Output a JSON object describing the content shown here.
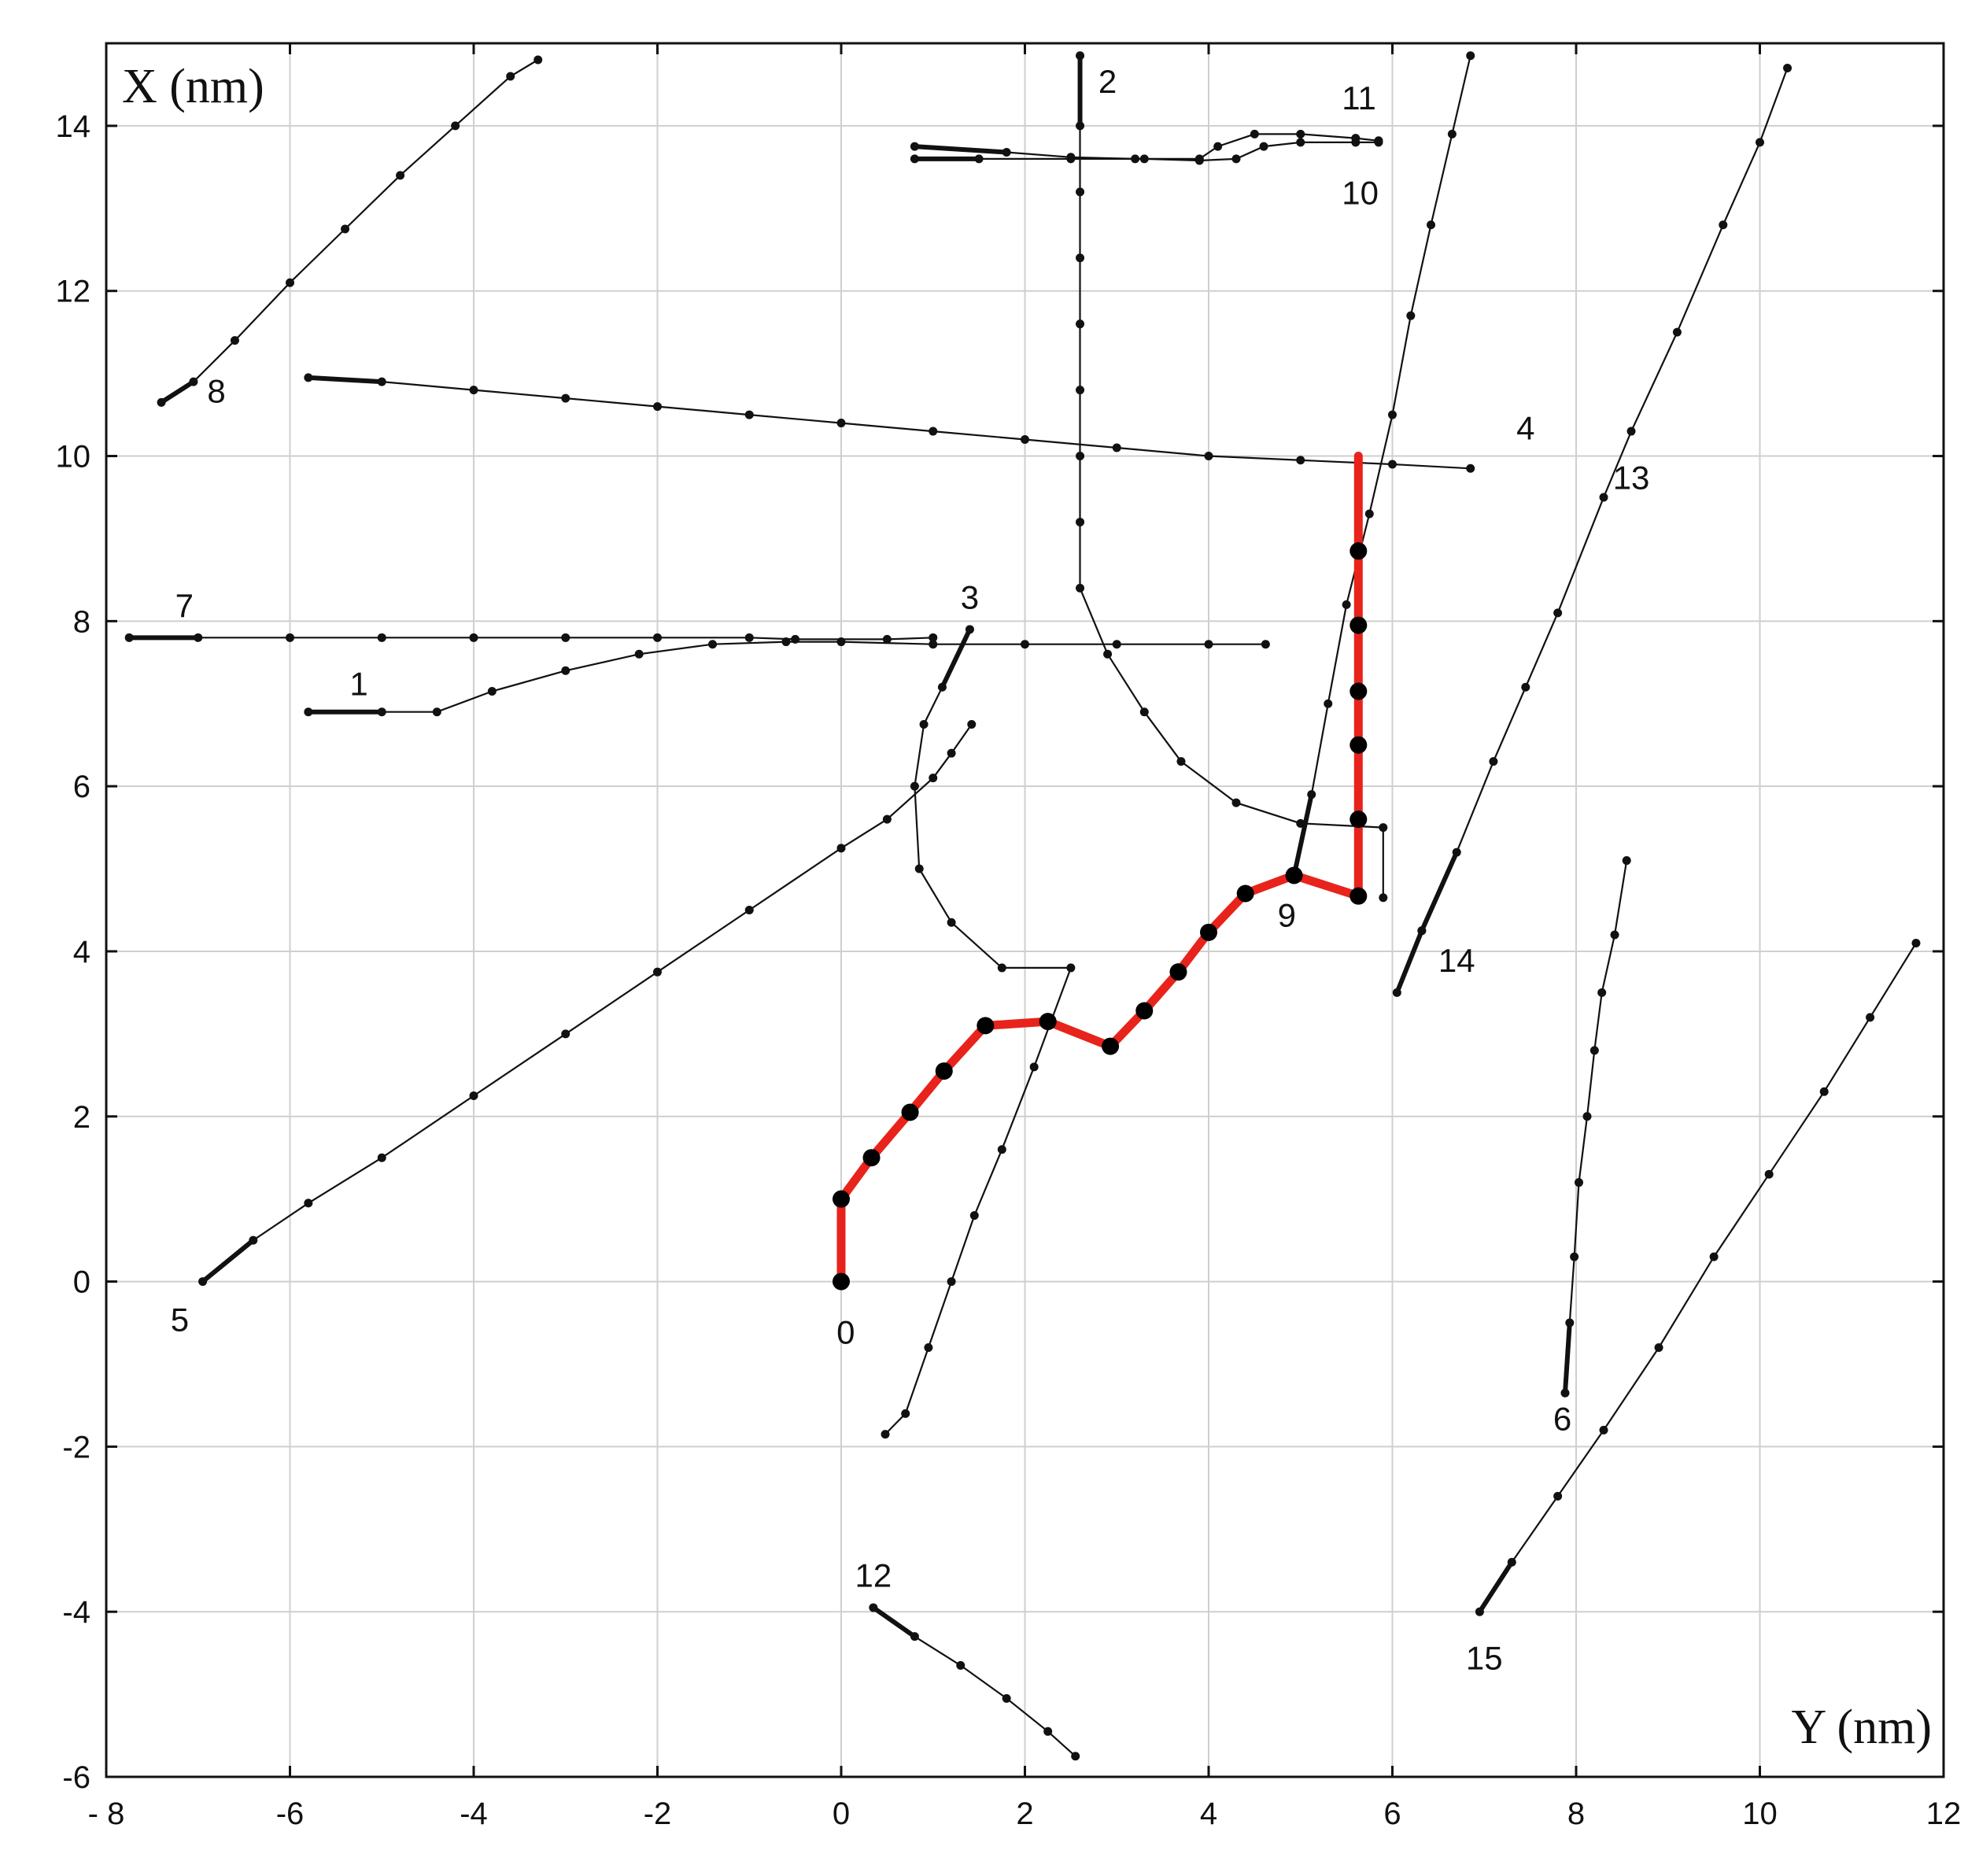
{
  "chart_data": {
    "type": "line",
    "xlabel": "Y (nm)",
    "ylabel": "X (nm)",
    "xlim": [
      -8,
      12
    ],
    "ylim": [
      -6,
      15
    ],
    "x_ticks": [
      -8,
      -6,
      -4,
      -2,
      0,
      2,
      4,
      6,
      8,
      10,
      12
    ],
    "y_ticks": [
      -6,
      -4,
      -2,
      0,
      2,
      4,
      6,
      8,
      10,
      12,
      14
    ],
    "x_tick_labels": [
      "- 8",
      "-6",
      "-4",
      "-2",
      "0",
      "2",
      "4",
      "6",
      "8",
      "10",
      "12"
    ],
    "y_tick_labels": [
      "-6",
      "-4",
      "-2",
      "0",
      "2",
      "4",
      "6",
      "8",
      "10",
      "12",
      "14"
    ],
    "grid": true,
    "highlight": {
      "label": "0",
      "color": "#e8231b",
      "points": [
        [
          0,
          0
        ],
        [
          0,
          1
        ],
        [
          0.33,
          1.5
        ],
        [
          0.75,
          2.05
        ],
        [
          1.12,
          2.55
        ],
        [
          1.57,
          3.1
        ],
        [
          2.25,
          3.15
        ],
        [
          2.93,
          2.85
        ],
        [
          3.3,
          3.28
        ],
        [
          3.67,
          3.75
        ],
        [
          4.0,
          4.23
        ],
        [
          4.4,
          4.7
        ],
        [
          4.93,
          4.92
        ],
        [
          5.63,
          4.67
        ],
        [
          5.63,
          5.6
        ],
        [
          5.63,
          6.5
        ],
        [
          5.63,
          7.15
        ],
        [
          5.63,
          7.95
        ],
        [
          5.63,
          8.85
        ],
        [
          5.63,
          10.0
        ]
      ]
    },
    "series": [
      {
        "label": "1",
        "points": [
          [
            -5.8,
            6.9
          ],
          [
            -5.0,
            6.9
          ],
          [
            -4.4,
            6.9
          ],
          [
            -3.8,
            7.15
          ],
          [
            -3.0,
            7.4
          ],
          [
            -2.2,
            7.6
          ],
          [
            -1.4,
            7.72
          ],
          [
            -0.6,
            7.75
          ],
          [
            0.0,
            7.75
          ],
          [
            1.0,
            7.72
          ],
          [
            2.0,
            7.72
          ],
          [
            3.0,
            7.72
          ],
          [
            4.0,
            7.72
          ],
          [
            4.62,
            7.72
          ]
        ]
      },
      {
        "label": "2",
        "points": [
          [
            2.6,
            14.85
          ],
          [
            2.6,
            14.0
          ],
          [
            2.6,
            13.2
          ],
          [
            2.6,
            12.4
          ],
          [
            2.6,
            11.6
          ],
          [
            2.6,
            10.8
          ],
          [
            2.6,
            10.0
          ],
          [
            2.6,
            9.2
          ],
          [
            2.6,
            8.4
          ],
          [
            2.9,
            7.6
          ],
          [
            3.3,
            6.9
          ],
          [
            3.7,
            6.3
          ],
          [
            4.3,
            5.8
          ],
          [
            5.0,
            5.55
          ],
          [
            5.9,
            5.5
          ],
          [
            5.9,
            4.65
          ]
        ]
      },
      {
        "label": "3",
        "points": [
          [
            1.4,
            7.9
          ],
          [
            1.1,
            7.2
          ],
          [
            0.9,
            6.75
          ],
          [
            0.8,
            6.0
          ],
          [
            0.85,
            5.0
          ],
          [
            1.2,
            4.35
          ],
          [
            1.75,
            3.8
          ],
          [
            2.5,
            3.8
          ],
          [
            2.1,
            2.6
          ],
          [
            1.75,
            1.6
          ],
          [
            1.45,
            0.8
          ],
          [
            1.2,
            0.0
          ],
          [
            0.95,
            -0.8
          ],
          [
            0.7,
            -1.6
          ],
          [
            0.48,
            -1.85
          ]
        ]
      },
      {
        "label": "4",
        "points": [
          [
            -5.8,
            10.95
          ],
          [
            -5.0,
            10.9
          ],
          [
            -4.0,
            10.8
          ],
          [
            -3.0,
            10.7
          ],
          [
            -2.0,
            10.6
          ],
          [
            -1.0,
            10.5
          ],
          [
            0.0,
            10.4
          ],
          [
            1.0,
            10.3
          ],
          [
            2.0,
            10.2
          ],
          [
            3.0,
            10.1
          ],
          [
            4.0,
            10.0
          ],
          [
            5.0,
            9.95
          ],
          [
            6.0,
            9.9
          ],
          [
            6.85,
            9.85
          ]
        ]
      },
      {
        "label": "5",
        "points": [
          [
            -6.95,
            0.0
          ],
          [
            -6.4,
            0.5
          ],
          [
            -5.8,
            0.95
          ],
          [
            -5.0,
            1.5
          ],
          [
            -4.0,
            2.25
          ],
          [
            -3.0,
            3.0
          ],
          [
            -2.0,
            3.75
          ],
          [
            -1.0,
            4.5
          ],
          [
            0.0,
            5.25
          ],
          [
            0.5,
            5.6
          ],
          [
            1.0,
            6.1
          ],
          [
            1.2,
            6.4
          ],
          [
            1.42,
            6.75
          ]
        ]
      },
      {
        "label": "6",
        "points": [
          [
            7.88,
            -1.35
          ],
          [
            7.93,
            -0.5
          ],
          [
            7.98,
            0.3
          ],
          [
            8.03,
            1.2
          ],
          [
            8.12,
            2.0
          ],
          [
            8.2,
            2.8
          ],
          [
            8.28,
            3.5
          ],
          [
            8.42,
            4.2
          ],
          [
            8.55,
            5.1
          ]
        ]
      },
      {
        "label": "7",
        "points": [
          [
            -7.75,
            7.8
          ],
          [
            -7.0,
            7.8
          ],
          [
            -6.0,
            7.8
          ],
          [
            -5.0,
            7.8
          ],
          [
            -4.0,
            7.8
          ],
          [
            -3.0,
            7.8
          ],
          [
            -2.0,
            7.8
          ],
          [
            -1.0,
            7.8
          ],
          [
            -0.5,
            7.78
          ],
          [
            0.5,
            7.78
          ],
          [
            1.0,
            7.8
          ]
        ]
      },
      {
        "label": "8",
        "points": [
          [
            -7.4,
            10.65
          ],
          [
            -7.05,
            10.9
          ],
          [
            -6.6,
            11.4
          ],
          [
            -6.0,
            12.1
          ],
          [
            -5.4,
            12.75
          ],
          [
            -4.8,
            13.4
          ],
          [
            -4.2,
            14.0
          ],
          [
            -3.6,
            14.6
          ],
          [
            -3.3,
            14.8
          ]
        ]
      },
      {
        "label": "9",
        "points": [
          [
            4.93,
            4.92
          ],
          [
            5.12,
            5.9
          ],
          [
            5.3,
            7.0
          ],
          [
            5.5,
            8.2
          ],
          [
            5.75,
            9.3
          ],
          [
            6.0,
            10.5
          ],
          [
            6.2,
            11.7
          ],
          [
            6.42,
            12.8
          ],
          [
            6.65,
            13.9
          ],
          [
            6.85,
            14.85
          ]
        ]
      },
      {
        "label": "10",
        "points": [
          [
            0.8,
            13.6
          ],
          [
            1.5,
            13.6
          ],
          [
            2.5,
            13.6
          ],
          [
            3.3,
            13.6
          ],
          [
            3.9,
            13.58
          ],
          [
            4.3,
            13.6
          ],
          [
            4.6,
            13.75
          ],
          [
            5.0,
            13.8
          ],
          [
            5.6,
            13.8
          ],
          [
            5.85,
            13.8
          ]
        ]
      },
      {
        "label": "11",
        "points": [
          [
            0.8,
            13.75
          ],
          [
            1.8,
            13.68
          ],
          [
            2.5,
            13.62
          ],
          [
            3.2,
            13.6
          ],
          [
            3.9,
            13.6
          ],
          [
            4.1,
            13.75
          ],
          [
            4.5,
            13.9
          ],
          [
            5.0,
            13.9
          ],
          [
            5.6,
            13.85
          ],
          [
            5.85,
            13.82
          ]
        ]
      },
      {
        "label": "12",
        "points": [
          [
            0.35,
            -3.95
          ],
          [
            0.8,
            -4.3
          ],
          [
            1.3,
            -4.65
          ],
          [
            1.8,
            -5.05
          ],
          [
            2.25,
            -5.45
          ],
          [
            2.55,
            -5.75
          ]
        ]
      },
      {
        "label": "13",
        "points": [
          [
            6.32,
            4.25
          ],
          [
            6.7,
            5.2
          ],
          [
            7.1,
            6.3
          ],
          [
            7.45,
            7.2
          ],
          [
            7.8,
            8.1
          ],
          [
            8.3,
            9.5
          ],
          [
            8.6,
            10.3
          ],
          [
            9.1,
            11.5
          ],
          [
            9.6,
            12.8
          ],
          [
            10.0,
            13.8
          ],
          [
            10.3,
            14.7
          ]
        ]
      },
      {
        "label": "14",
        "points": [
          [
            6.05,
            3.5
          ],
          [
            6.32,
            4.25
          ]
        ]
      },
      {
        "label": "15",
        "points": [
          [
            6.95,
            -4.0
          ],
          [
            7.3,
            -3.4
          ],
          [
            7.8,
            -2.6
          ],
          [
            8.3,
            -1.8
          ],
          [
            8.9,
            -0.8
          ],
          [
            9.5,
            0.3
          ],
          [
            10.1,
            1.3
          ],
          [
            10.7,
            2.3
          ],
          [
            11.2,
            3.2
          ],
          [
            11.7,
            4.1
          ]
        ]
      }
    ]
  },
  "labels": [
    {
      "id": "traj-label-0",
      "text": "0"
    },
    {
      "id": "traj-label-1",
      "text": "1"
    },
    {
      "id": "traj-label-2",
      "text": "2"
    },
    {
      "id": "traj-label-3",
      "text": "3"
    },
    {
      "id": "traj-label-4",
      "text": "4"
    },
    {
      "id": "traj-label-5",
      "text": "5"
    },
    {
      "id": "traj-label-6",
      "text": "6"
    },
    {
      "id": "traj-label-7",
      "text": "7"
    },
    {
      "id": "traj-label-8",
      "text": "8"
    },
    {
      "id": "traj-label-9",
      "text": "9"
    },
    {
      "id": "traj-label-10",
      "text": "10"
    },
    {
      "id": "traj-label-11",
      "text": "11"
    },
    {
      "id": "traj-label-12",
      "text": "12"
    },
    {
      "id": "traj-label-13",
      "text": "13"
    },
    {
      "id": "traj-label-14",
      "text": "14"
    },
    {
      "id": "traj-label-15",
      "text": "15"
    }
  ]
}
